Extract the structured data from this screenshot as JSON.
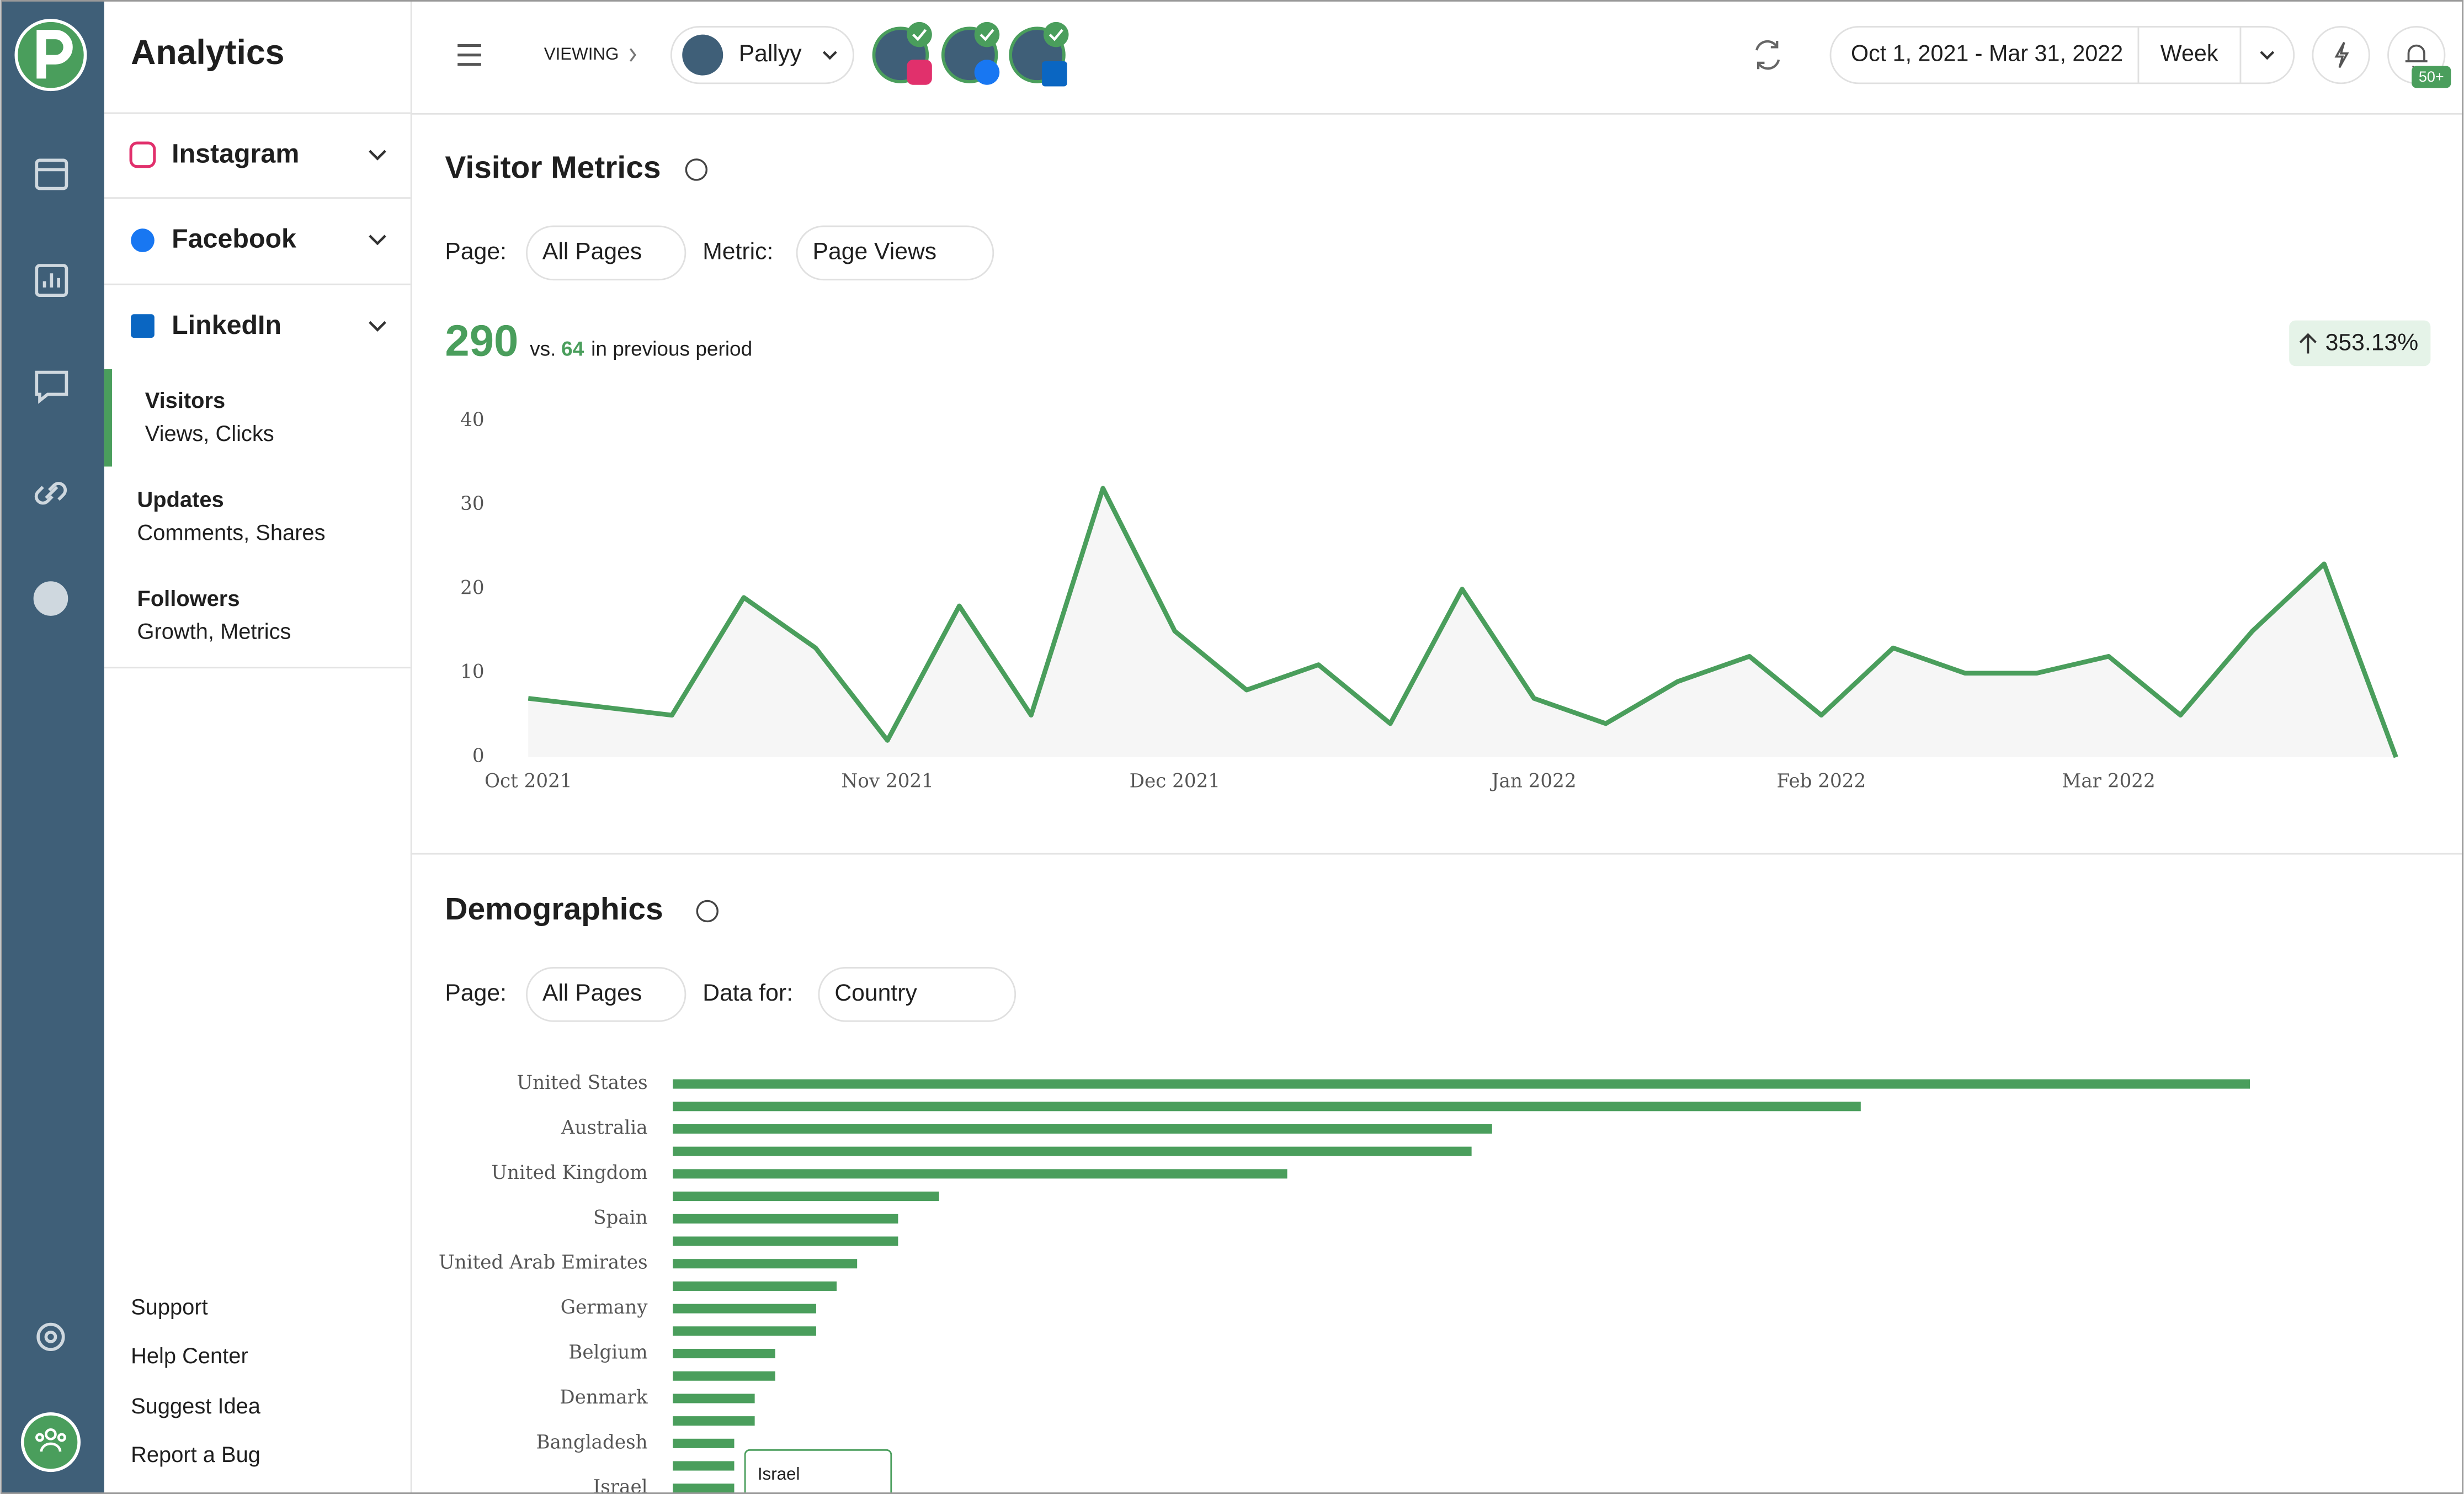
{
  "sidebar": {
    "title": "Analytics",
    "networks": [
      "Instagram",
      "Facebook",
      "LinkedIn"
    ],
    "subnav": [
      {
        "title": "Visitors",
        "subtitle": "Views, Clicks"
      },
      {
        "title": "Updates",
        "subtitle": "Comments, Shares"
      },
      {
        "title": "Followers",
        "subtitle": "Growth, Metrics"
      }
    ],
    "links": [
      "Support",
      "Help Center",
      "Suggest Idea",
      "Report a Bug"
    ]
  },
  "topbar": {
    "viewing": "VIEWING",
    "account": "Pallyy",
    "date_range": "Oct 1, 2021 - Mar 31, 2022",
    "interval": "Week",
    "notifications": "50+"
  },
  "visitor_metrics": {
    "title": "Visitor Metrics",
    "page_label": "Page:",
    "page_value": "All Pages",
    "metric_label": "Metric:",
    "metric_value": "Page Views",
    "total": 290,
    "vs": "vs.",
    "previous": 64,
    "previous_text": "in previous period",
    "change": "353.13%"
  },
  "demographics": {
    "title": "Demographics",
    "page_label": "Page:",
    "page_value": "All Pages",
    "data_label": "Data for:",
    "data_value": "Country",
    "tooltip": "Israel"
  },
  "chart_data": [
    {
      "type": "line",
      "categories": [
        "Oct 2021",
        null,
        null,
        null,
        null,
        "Nov 2021",
        null,
        null,
        null,
        "Dec 2021",
        null,
        null,
        null,
        null,
        "Jan 2022",
        null,
        null,
        null,
        "Feb 2022",
        null,
        null,
        null,
        "Mar 2022",
        null,
        null,
        null,
        null
      ],
      "values": [
        7,
        6,
        5,
        19,
        13,
        2,
        18,
        5,
        32,
        15,
        8,
        11,
        4,
        20,
        7,
        4,
        9,
        12,
        5,
        13,
        10,
        10,
        12,
        5,
        15,
        23,
        0
      ],
      "color": "#4a9e5c",
      "ylim": [
        0,
        40
      ],
      "yticks": [
        0,
        10,
        20,
        30,
        40
      ]
    },
    {
      "type": "hbar",
      "categories": [
        "United States",
        null,
        "Australia",
        null,
        "United Kingdom",
        null,
        "Spain",
        null,
        "United Arab Emirates",
        null,
        "Germany",
        null,
        "Belgium",
        null,
        "Denmark",
        null,
        "Bangladesh",
        null,
        "Israel"
      ],
      "values": [
        77,
        58,
        40,
        39,
        30,
        13,
        11,
        11,
        9,
        8,
        7,
        7,
        5,
        5,
        4,
        4,
        3,
        3,
        3
      ],
      "color": "#4a9e5c"
    }
  ]
}
